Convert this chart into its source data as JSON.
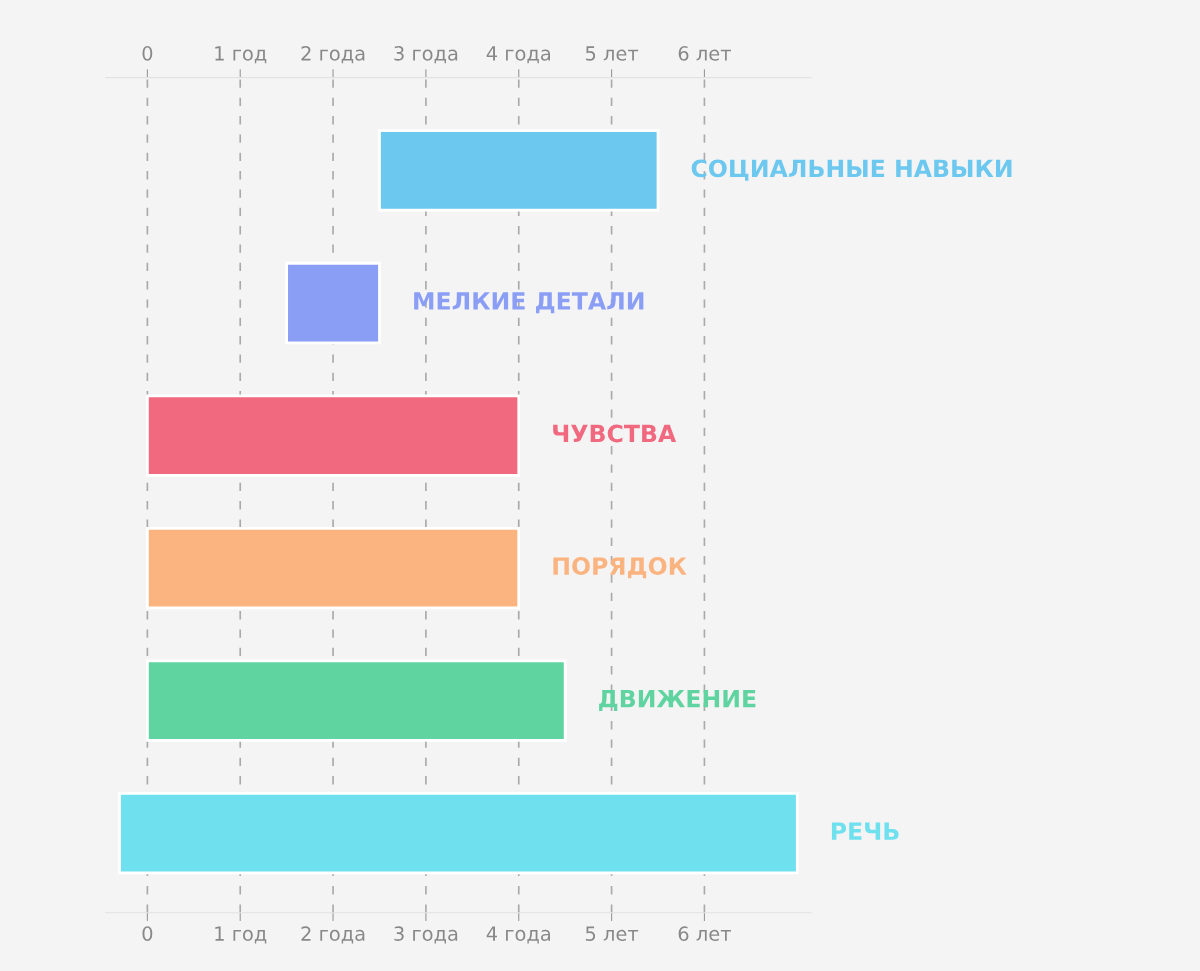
{
  "chart_data": {
    "type": "bar",
    "orientation": "horizontal",
    "categories": [
      "СОЦИАЛЬНЫЕ НАВЫКИ",
      "МЕЛКИЕ ДЕТАЛИ",
      "ЧУВСТВА",
      "ПОРЯДОК",
      "ДВИЖЕНИЕ",
      "РЕЧЬ"
    ],
    "base": [
      2.5,
      1.5,
      0,
      0,
      0,
      -0.3
    ],
    "values": [
      3,
      1,
      4,
      4,
      4.5,
      7.3
    ],
    "colors": [
      "#6cc8ee",
      "#8a9ef5",
      "#f0697f",
      "#fbb37f",
      "#5fd4a0",
      "#6ee0ee"
    ],
    "xlim": [
      -0.45,
      7.15
    ],
    "xticks": [
      0,
      {
        "value": 1,
        "label": "1 год"
      },
      {
        "value": 2,
        "label": "2 года"
      },
      {
        "value": 3,
        "label": "3 года"
      },
      {
        "value": 4,
        "label": "4 года"
      },
      {
        "value": 5,
        "label": "5 лет"
      },
      {
        "value": 6,
        "label": "6 лет"
      }
    ],
    "x2lim": [
      -0.45,
      7.15
    ],
    "x2ticks": [
      0,
      {
        "value": 1,
        "label": "1 год"
      },
      {
        "value": 2,
        "label": "2 года"
      },
      {
        "value": 3,
        "label": "3 года"
      },
      {
        "value": 4,
        "label": "4 года"
      },
      {
        "value": 5,
        "label": "5 лет"
      },
      {
        "value": 6,
        "label": "6 лет"
      }
    ],
    "grid": "x",
    "legend": false
  }
}
